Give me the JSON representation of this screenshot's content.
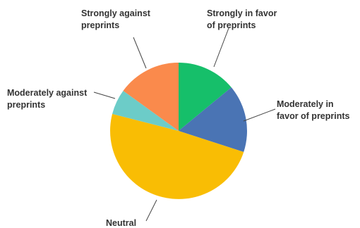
{
  "chart_data": {
    "type": "pie",
    "start_angle_deg": 0,
    "direction": "clockwise",
    "slices": [
      {
        "label_lines": [
          "Strongly in favor",
          "of preprints"
        ],
        "value": 14,
        "color": "#16bf6a"
      },
      {
        "label_lines": [
          "Moderately in",
          "favor of preprints"
        ],
        "value": 16,
        "color": "#4a74b4"
      },
      {
        "label_lines": [
          "Neutral"
        ],
        "value": 49,
        "color": "#f9bd04"
      },
      {
        "label_lines": [
          "Moderately against",
          "preprints"
        ],
        "value": 6,
        "color": "#6cccc8"
      },
      {
        "label_lines": [
          "Strongly against",
          "preprints"
        ],
        "value": 15,
        "color": "#fa8a4c"
      }
    ],
    "legend": "none",
    "title": ""
  }
}
